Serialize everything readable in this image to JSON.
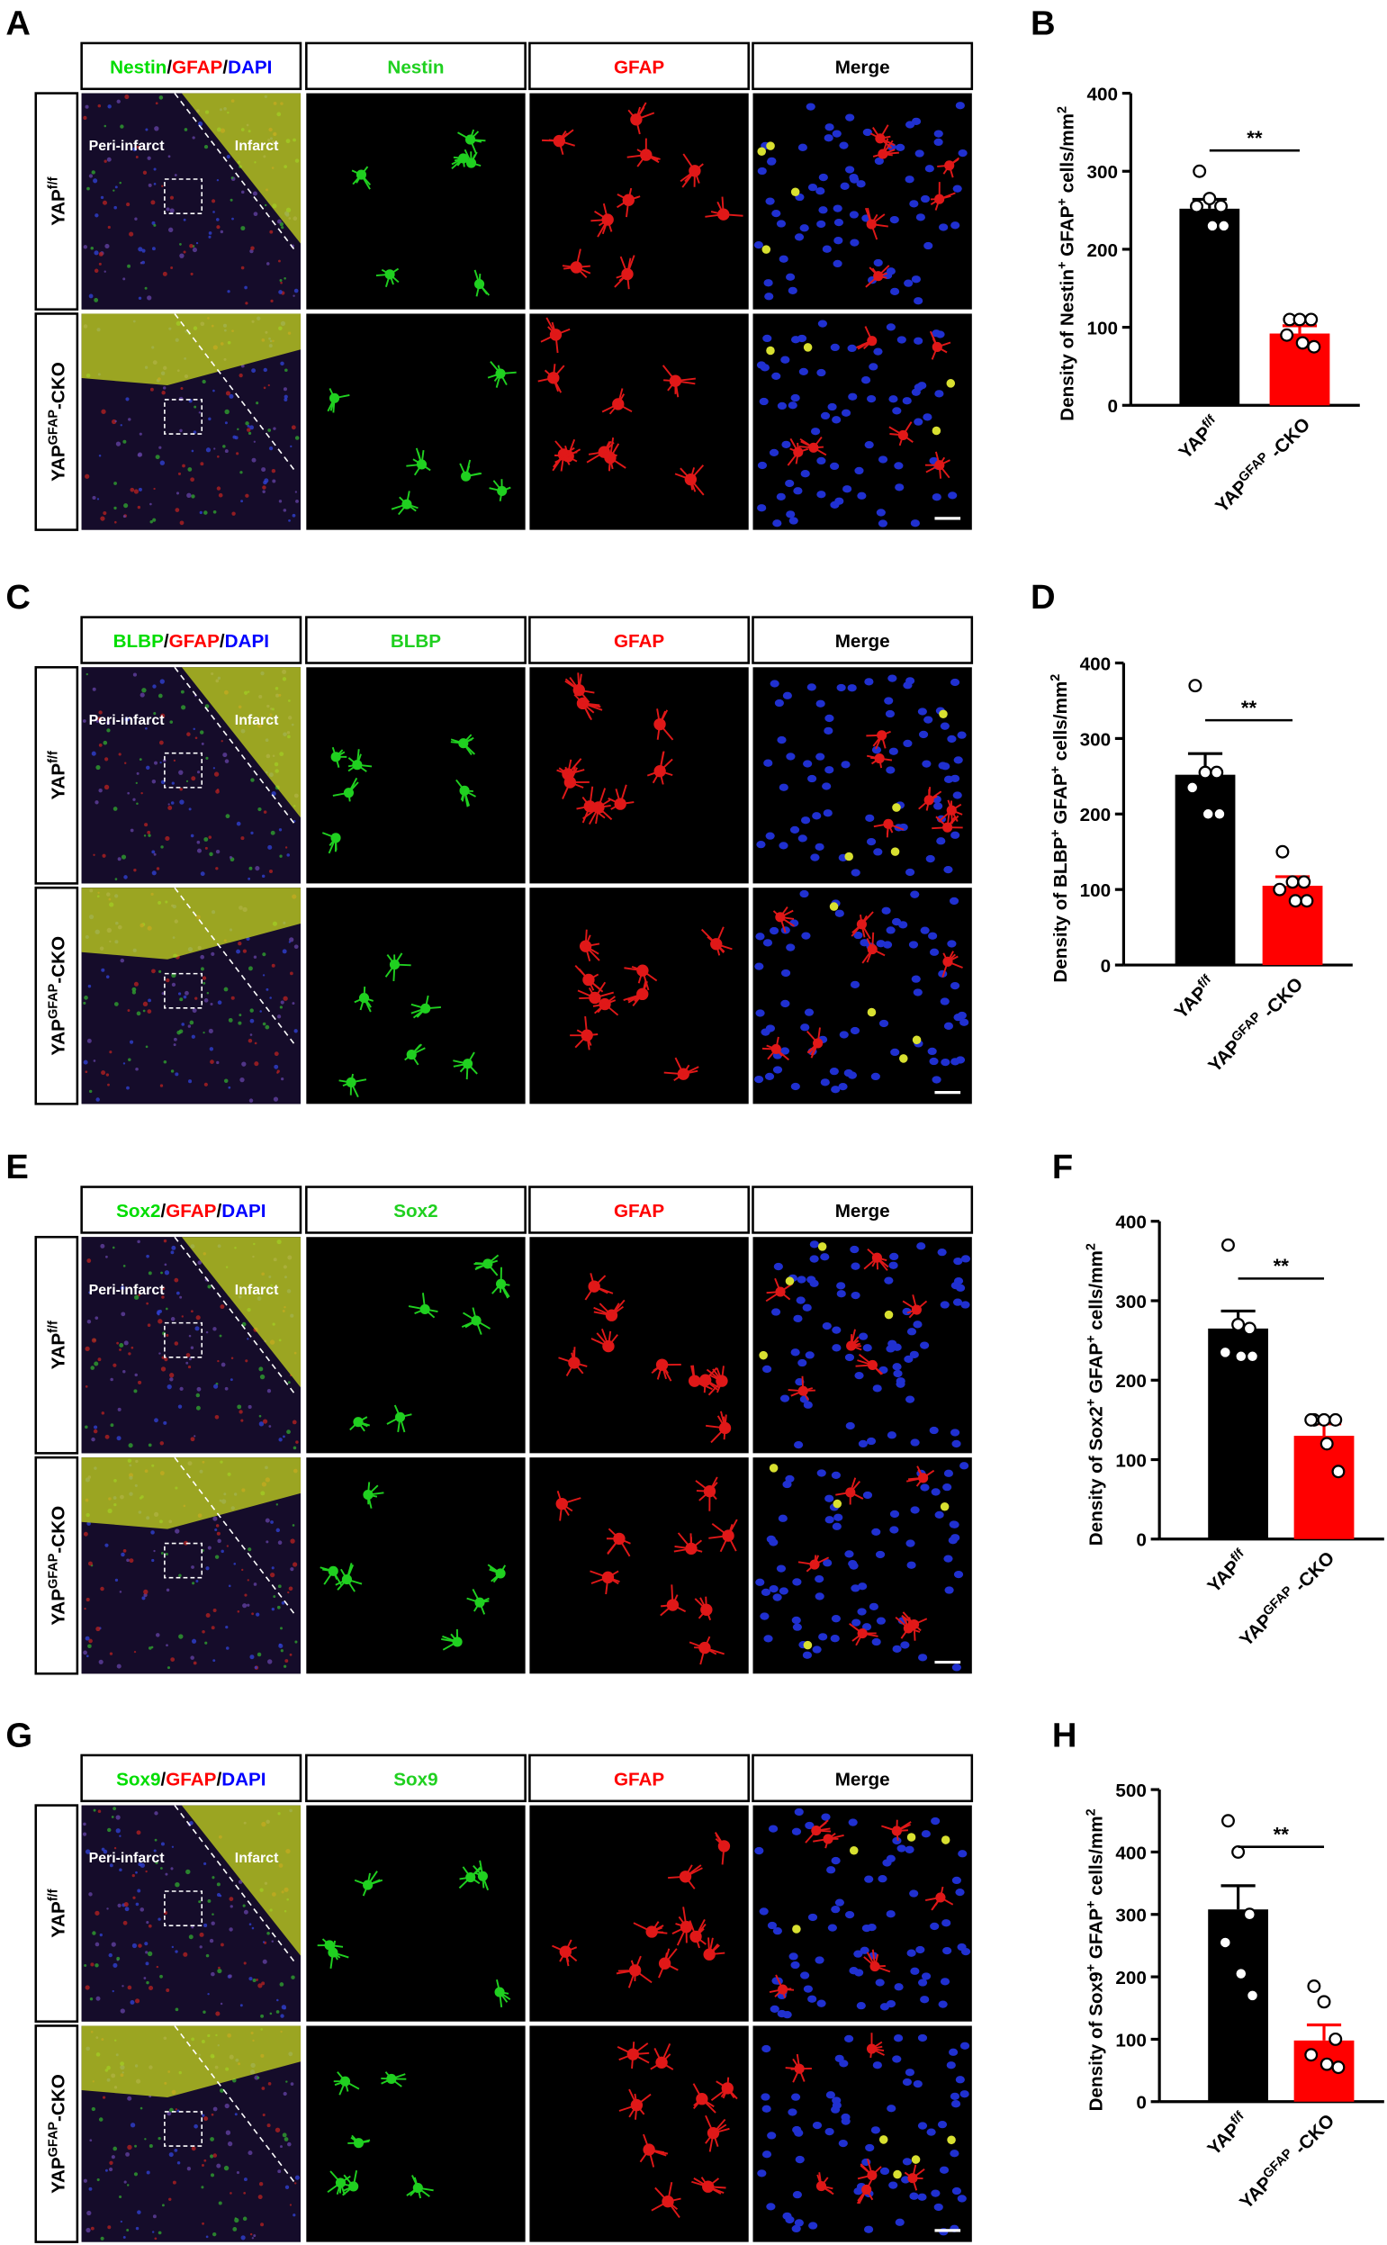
{
  "row_labels": [
    [
      {
        "text": "YAP"
      },
      {
        "text": "f/f",
        "sup": true
      }
    ],
    [
      {
        "text": "YAP"
      },
      {
        "text": "GFAP",
        "sup": true
      },
      {
        "text": "-CKO"
      }
    ]
  ],
  "annotations": [
    "Peri-infarct",
    "Infarct"
  ],
  "image_panels": [
    {
      "letter": "A",
      "merge_header": [
        {
          "text": "Nestin",
          "color": "#00dd00"
        },
        {
          "text": "/",
          "color": "#000000"
        },
        {
          "text": "GFAP",
          "color": "#ff0000"
        },
        {
          "text": "/",
          "color": "#000000"
        },
        {
          "text": "DAPI",
          "color": "#0000ff"
        }
      ],
      "green_header": "Nestin",
      "red_header": "GFAP",
      "merge_label": "Merge"
    },
    {
      "letter": "C",
      "merge_header": [
        {
          "text": "BLBP",
          "color": "#00dd00"
        },
        {
          "text": "/",
          "color": "#000000"
        },
        {
          "text": "GFAP",
          "color": "#ff0000"
        },
        {
          "text": "/",
          "color": "#000000"
        },
        {
          "text": "DAPI",
          "color": "#0000ff"
        }
      ],
      "green_header": "BLBP",
      "red_header": "GFAP",
      "merge_label": "Merge"
    },
    {
      "letter": "E",
      "merge_header": [
        {
          "text": "Sox2",
          "color": "#00dd00"
        },
        {
          "text": "/",
          "color": "#000000"
        },
        {
          "text": "GFAP",
          "color": "#ff0000"
        },
        {
          "text": "/",
          "color": "#000000"
        },
        {
          "text": "DAPI",
          "color": "#0000ff"
        }
      ],
      "green_header": "Sox2",
      "red_header": "GFAP",
      "merge_label": "Merge"
    },
    {
      "letter": "G",
      "merge_header": [
        {
          "text": "Sox9",
          "color": "#00dd00"
        },
        {
          "text": "/",
          "color": "#000000"
        },
        {
          "text": "GFAP",
          "color": "#ff0000"
        },
        {
          "text": "/",
          "color": "#000000"
        },
        {
          "text": "DAPI",
          "color": "#0000ff"
        }
      ],
      "green_header": "Sox9",
      "red_header": "GFAP",
      "merge_label": "Merge"
    }
  ],
  "chart_data": [
    {
      "type": "bar",
      "letter": "B",
      "ylabel": [
        {
          "text": "Density of Nestin"
        },
        {
          "text": "+",
          "sup": true
        },
        {
          "text": " GFAP"
        },
        {
          "text": "+",
          "sup": true
        },
        {
          "text": " cells/mm"
        },
        {
          "text": "2",
          "sup": true
        }
      ],
      "categories": [
        [
          {
            "text": "YAP"
          },
          {
            "text": "f/f",
            "sup": true
          }
        ],
        [
          {
            "text": "YAP"
          },
          {
            "text": "GFAP",
            "sup": true
          },
          {
            "text": " -CKO"
          }
        ]
      ],
      "values": [
        252,
        92
      ],
      "errors": [
        12,
        10
      ],
      "points": [
        [
          300,
          265,
          255,
          255,
          230,
          230
        ],
        [
          110,
          110,
          110,
          90,
          80,
          75
        ]
      ],
      "colors": [
        "#000000",
        "#ff0000"
      ],
      "ylim": [
        0,
        400
      ],
      "yticks": [
        0,
        100,
        200,
        300,
        400
      ],
      "significance": "**"
    },
    {
      "type": "bar",
      "letter": "D",
      "ylabel": [
        {
          "text": "Density of BLBP"
        },
        {
          "text": "+",
          "sup": true
        },
        {
          "text": " GFAP"
        },
        {
          "text": "+",
          "sup": true
        },
        {
          "text": " cells/mm"
        },
        {
          "text": "2",
          "sup": true
        }
      ],
      "categories": [
        [
          {
            "text": "YAP"
          },
          {
            "text": "f/f",
            "sup": true
          }
        ],
        [
          {
            "text": "YAP"
          },
          {
            "text": "GFAP",
            "sup": true
          },
          {
            "text": " -CKO"
          }
        ]
      ],
      "values": [
        252,
        105
      ],
      "errors": [
        28,
        12
      ],
      "points": [
        [
          370,
          255,
          255,
          235,
          200,
          200
        ],
        [
          150,
          110,
          110,
          100,
          85,
          85
        ]
      ],
      "colors": [
        "#000000",
        "#ff0000"
      ],
      "ylim": [
        0,
        400
      ],
      "yticks": [
        0,
        100,
        200,
        300,
        400
      ],
      "significance": "**"
    },
    {
      "type": "bar",
      "letter": "F",
      "ylabel": [
        {
          "text": "Density of Sox2"
        },
        {
          "text": "+",
          "sup": true
        },
        {
          "text": " GFAP"
        },
        {
          "text": "+",
          "sup": true
        },
        {
          "text": " cells/mm"
        },
        {
          "text": "2",
          "sup": true
        }
      ],
      "categories": [
        [
          {
            "text": "YAP"
          },
          {
            "text": "f/f",
            "sup": true
          }
        ],
        [
          {
            "text": "YAP"
          },
          {
            "text": "GFAP",
            "sup": true
          },
          {
            "text": " -CKO"
          }
        ]
      ],
      "values": [
        265,
        130
      ],
      "errors": [
        22,
        15
      ],
      "points": [
        [
          370,
          270,
          265,
          235,
          230,
          230
        ],
        [
          150,
          150,
          150,
          150,
          120,
          85
        ]
      ],
      "colors": [
        "#000000",
        "#ff0000"
      ],
      "ylim": [
        0,
        400
      ],
      "yticks": [
        0,
        100,
        200,
        300,
        400
      ],
      "significance": "**"
    },
    {
      "type": "bar",
      "letter": "H",
      "ylabel": [
        {
          "text": "Density of Sox9"
        },
        {
          "text": "+",
          "sup": true
        },
        {
          "text": " GFAP"
        },
        {
          "text": "+",
          "sup": true
        },
        {
          "text": " cells/mm"
        },
        {
          "text": "2",
          "sup": true
        }
      ],
      "categories": [
        [
          {
            "text": "YAP"
          },
          {
            "text": "f/f",
            "sup": true
          }
        ],
        [
          {
            "text": "YAP"
          },
          {
            "text": "GFAP",
            "sup": true
          },
          {
            "text": " -CKO"
          }
        ]
      ],
      "values": [
        308,
        98
      ],
      "errors": [
        38,
        25
      ],
      "points": [
        [
          450,
          400,
          300,
          255,
          205,
          170
        ],
        [
          185,
          160,
          100,
          75,
          60,
          55
        ]
      ],
      "colors": [
        "#000000",
        "#ff0000"
      ],
      "ylim": [
        0,
        500
      ],
      "yticks": [
        0,
        100,
        200,
        300,
        400,
        500
      ],
      "significance": "**"
    }
  ]
}
